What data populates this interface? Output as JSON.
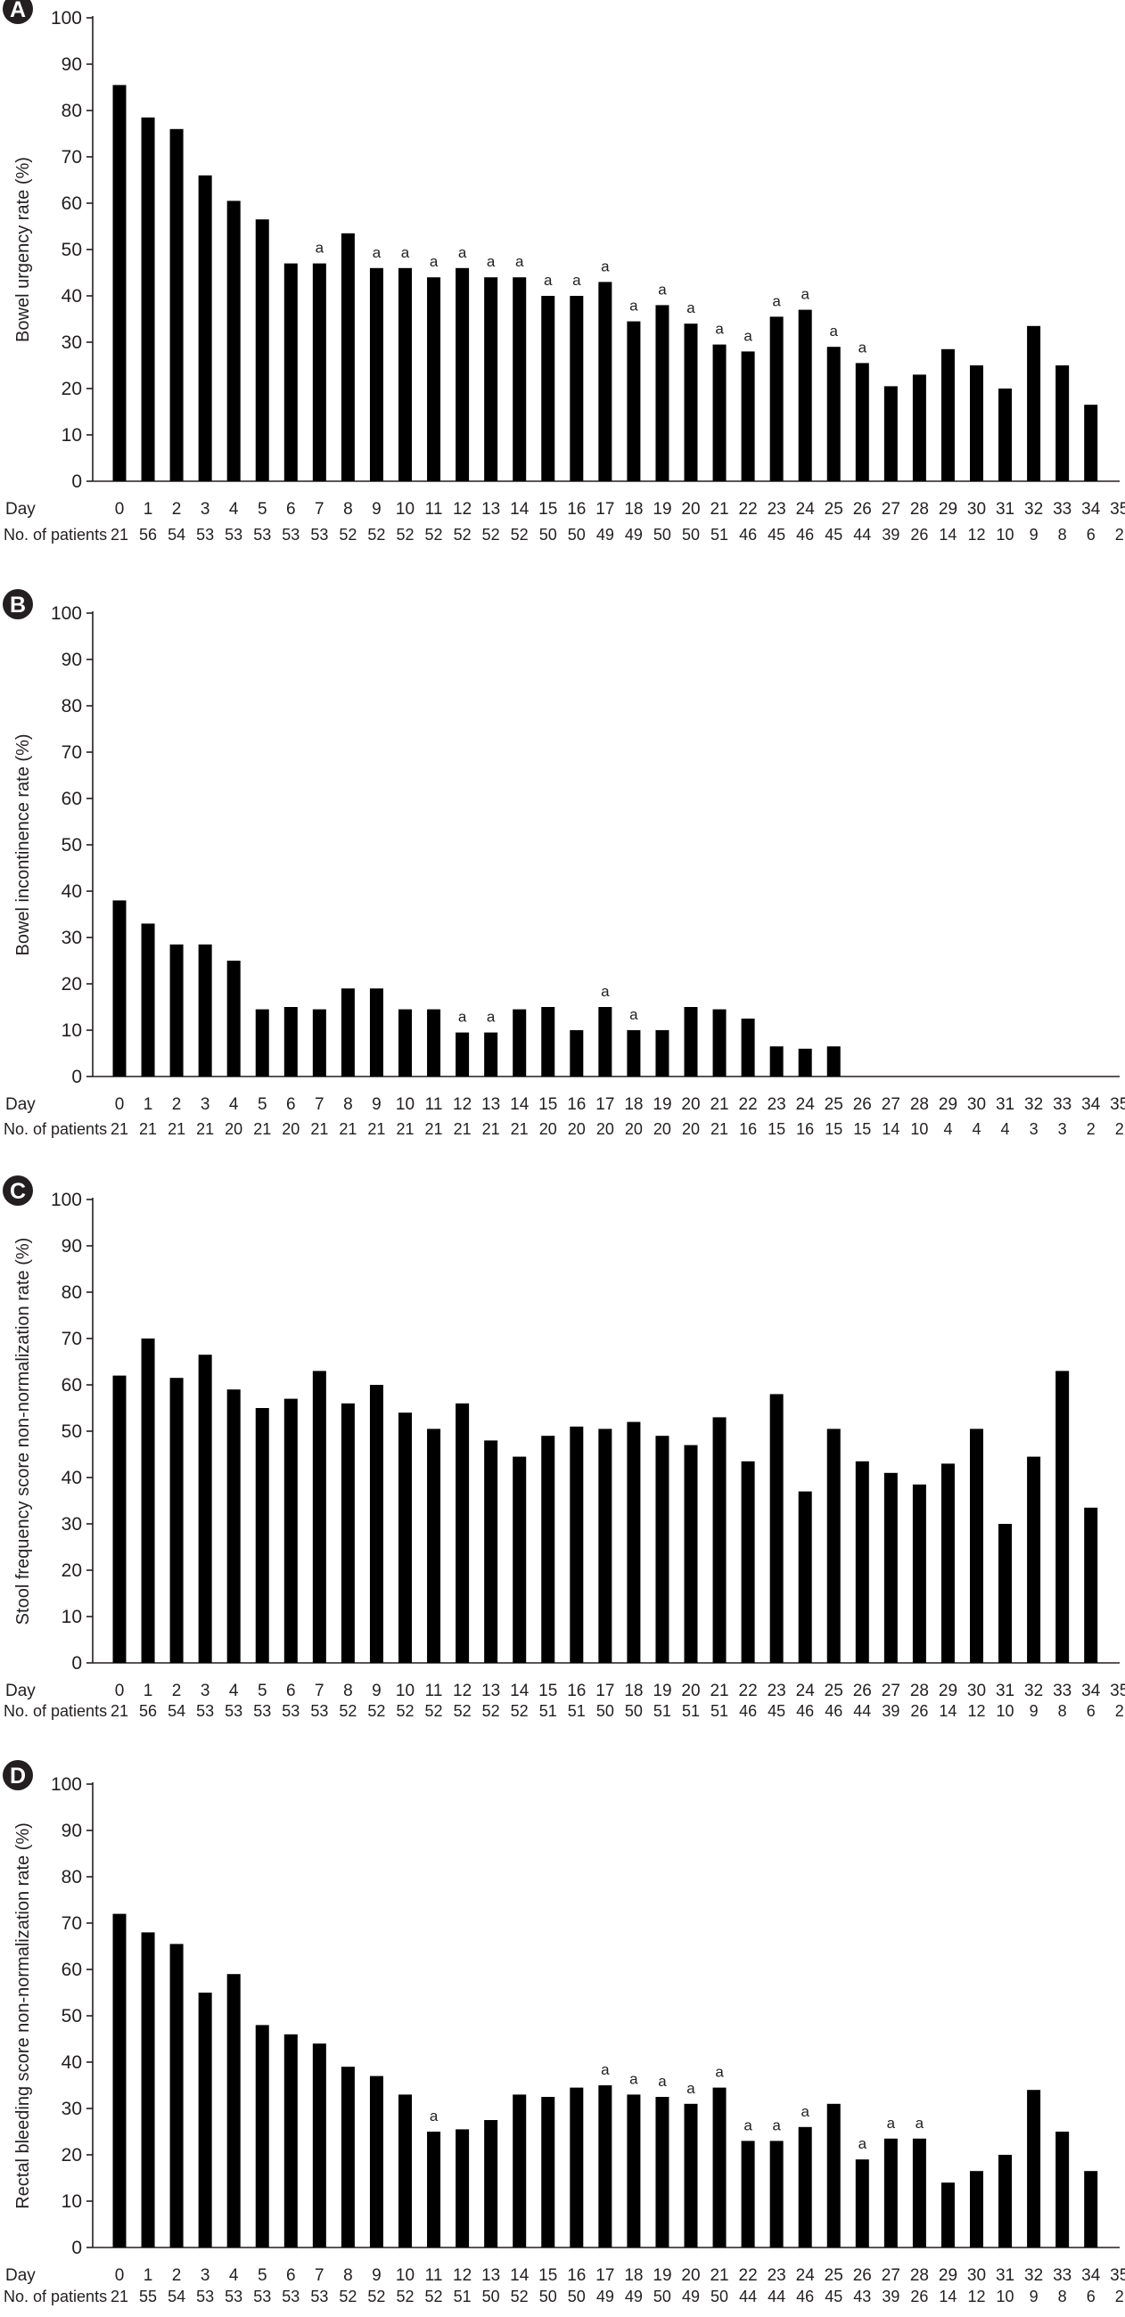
{
  "chart_data": [
    {
      "type": "bar",
      "panel": "A",
      "ylabel": "Bowel urgency rate (%)",
      "xlabel": "Day",
      "row_label": "No. of patients",
      "ylim": [
        0,
        100
      ],
      "yticks": [
        0,
        10,
        20,
        30,
        40,
        50,
        60,
        70,
        80,
        90,
        100
      ],
      "categories": [
        "0",
        "1",
        "2",
        "3",
        "4",
        "5",
        "6",
        "7",
        "8",
        "9",
        "10",
        "11",
        "12",
        "13",
        "14",
        "15",
        "16",
        "17",
        "18",
        "19",
        "20",
        "21",
        "22",
        "23",
        "24",
        "25",
        "26",
        "27",
        "28",
        "29",
        "30",
        "31",
        "32",
        "33",
        "34",
        "35"
      ],
      "values": [
        85.5,
        78.5,
        76,
        66,
        60.5,
        56.5,
        47,
        47,
        53.5,
        46,
        46,
        44,
        46,
        44,
        44,
        40,
        40,
        43,
        34.5,
        38,
        34,
        29.5,
        28,
        35.5,
        37,
        29,
        25.5,
        20.5,
        23,
        28.5,
        25,
        20,
        33.5,
        25,
        16.5,
        null
      ],
      "annotation_mark": "a",
      "annotated": [
        7,
        9,
        10,
        11,
        12,
        13,
        14,
        15,
        16,
        17,
        18,
        19,
        20,
        21,
        22,
        23,
        24,
        25,
        26
      ],
      "n_patients": [
        "21",
        "56",
        "54",
        "53",
        "53",
        "53",
        "53",
        "53",
        "52",
        "52",
        "52",
        "52",
        "52",
        "52",
        "52",
        "50",
        "50",
        "49",
        "49",
        "50",
        "50",
        "51",
        "46",
        "45",
        "46",
        "45",
        "44",
        "39",
        "26",
        "14",
        "12",
        "10",
        "9",
        "8",
        "6",
        "2"
      ]
    },
    {
      "type": "bar",
      "panel": "B",
      "ylabel": "Bowel incontinence rate (%)",
      "xlabel": "Day",
      "row_label": "No. of patients",
      "ylim": [
        0,
        100
      ],
      "yticks": [
        0,
        10,
        20,
        30,
        40,
        50,
        60,
        70,
        80,
        90,
        100
      ],
      "categories": [
        "0",
        "1",
        "2",
        "3",
        "4",
        "5",
        "6",
        "7",
        "8",
        "9",
        "10",
        "11",
        "12",
        "13",
        "14",
        "15",
        "16",
        "17",
        "18",
        "19",
        "20",
        "21",
        "22",
        "23",
        "24",
        "25",
        "26",
        "27",
        "28",
        "29",
        "30",
        "31",
        "32",
        "33",
        "34",
        "35"
      ],
      "values": [
        38,
        33,
        28.5,
        28.5,
        25,
        14.5,
        15,
        14.5,
        19,
        19,
        14.5,
        14.5,
        9.5,
        9.5,
        14.5,
        15,
        10,
        15,
        10,
        10,
        15,
        14.5,
        12.5,
        6.5,
        6,
        6.5,
        0,
        0,
        0,
        0,
        0,
        0,
        0,
        0,
        0,
        0
      ],
      "annotation_mark": "a",
      "annotated": [
        12,
        13,
        17,
        18
      ],
      "n_patients": [
        "21",
        "21",
        "21",
        "21",
        "20",
        "21",
        "20",
        "21",
        "21",
        "21",
        "21",
        "21",
        "21",
        "21",
        "21",
        "20",
        "20",
        "20",
        "20",
        "20",
        "20",
        "21",
        "16",
        "15",
        "16",
        "15",
        "15",
        "14",
        "10",
        "4",
        "4",
        "4",
        "3",
        "3",
        "2",
        "2"
      ]
    },
    {
      "type": "bar",
      "panel": "C",
      "ylabel": "Stool frequency score non-normalization rate (%)",
      "xlabel": "Day",
      "row_label": "No. of patients",
      "ylim": [
        0,
        100
      ],
      "yticks": [
        0,
        10,
        20,
        30,
        40,
        50,
        60,
        70,
        80,
        90,
        100
      ],
      "categories": [
        "0",
        "1",
        "2",
        "3",
        "4",
        "5",
        "6",
        "7",
        "8",
        "9",
        "10",
        "11",
        "12",
        "13",
        "14",
        "15",
        "16",
        "17",
        "18",
        "19",
        "20",
        "21",
        "22",
        "23",
        "24",
        "25",
        "26",
        "27",
        "28",
        "29",
        "30",
        "31",
        "32",
        "33",
        "34",
        "35"
      ],
      "values": [
        62,
        70,
        61.5,
        66.5,
        59,
        55,
        57,
        63,
        56,
        60,
        54,
        50.5,
        56,
        48,
        44.5,
        49,
        51,
        50.5,
        52,
        49,
        47,
        53,
        43.5,
        58,
        37,
        50.5,
        43.5,
        41,
        38.5,
        43,
        50.5,
        30,
        44.5,
        63,
        33.5,
        null
      ],
      "annotation_mark": "a",
      "annotated": [],
      "n_patients": [
        "21",
        "56",
        "54",
        "53",
        "53",
        "53",
        "53",
        "53",
        "52",
        "52",
        "52",
        "52",
        "52",
        "52",
        "52",
        "51",
        "51",
        "50",
        "50",
        "51",
        "51",
        "51",
        "46",
        "45",
        "46",
        "46",
        "44",
        "39",
        "26",
        "14",
        "12",
        "10",
        "9",
        "8",
        "6",
        "2"
      ]
    },
    {
      "type": "bar",
      "panel": "D",
      "ylabel": "Rectal bleeding score non-normalization rate (%)",
      "xlabel": "Day",
      "row_label": "No. of patients",
      "ylim": [
        0,
        100
      ],
      "yticks": [
        0,
        10,
        20,
        30,
        40,
        50,
        60,
        70,
        80,
        90,
        100
      ],
      "categories": [
        "0",
        "1",
        "2",
        "3",
        "4",
        "5",
        "6",
        "7",
        "8",
        "9",
        "10",
        "11",
        "12",
        "13",
        "14",
        "15",
        "16",
        "17",
        "18",
        "19",
        "20",
        "21",
        "22",
        "23",
        "24",
        "25",
        "26",
        "27",
        "28",
        "29",
        "30",
        "31",
        "32",
        "33",
        "34",
        "35"
      ],
      "values": [
        72,
        68,
        65.5,
        55,
        59,
        48,
        46,
        44,
        39,
        37,
        33,
        25,
        25.5,
        27.5,
        33,
        32.5,
        34.5,
        35,
        33,
        32.5,
        31,
        34.5,
        23,
        23,
        26,
        31,
        19,
        23.5,
        23.5,
        14,
        16.5,
        20,
        34,
        25,
        16.5,
        null
      ],
      "annotation_mark": "a",
      "annotated": [
        11,
        17,
        18,
        19,
        20,
        21,
        22,
        23,
        24,
        26,
        27,
        28
      ],
      "n_patients": [
        "21",
        "55",
        "54",
        "53",
        "53",
        "53",
        "53",
        "53",
        "52",
        "52",
        "52",
        "52",
        "51",
        "50",
        "52",
        "50",
        "50",
        "49",
        "49",
        "50",
        "49",
        "50",
        "44",
        "44",
        "46",
        "45",
        "43",
        "39",
        "26",
        "14",
        "12",
        "10",
        "9",
        "8",
        "6",
        "2"
      ]
    }
  ]
}
